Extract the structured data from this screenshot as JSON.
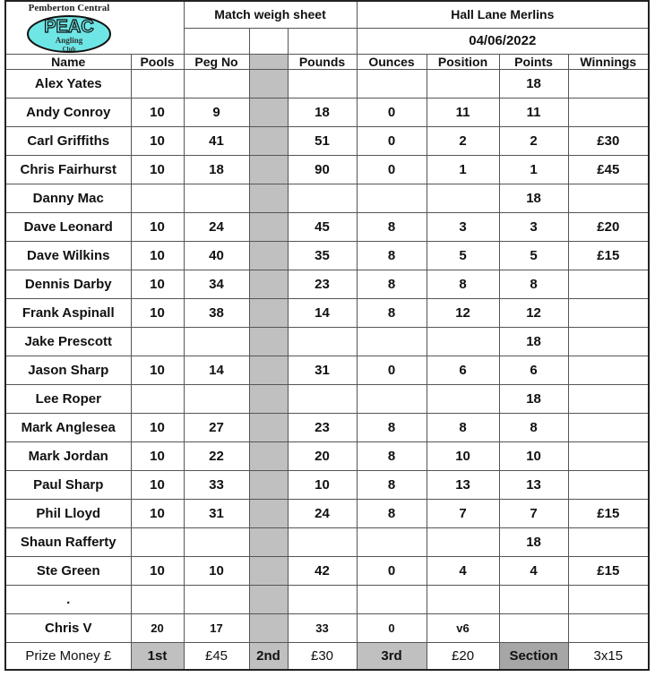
{
  "logo": {
    "text_top": "Pemberton Central",
    "text_main": "PEAC",
    "text_sub1": "Angling",
    "text_sub2": "Club",
    "fill": "#6ee6e6"
  },
  "header": {
    "title": "Match weigh sheet",
    "venue": "Hall Lane Merlins",
    "date": "04/06/2022"
  },
  "columns": [
    "Name",
    "Pools",
    "Peg No",
    "",
    "Pounds",
    "Ounces",
    "Position",
    "Points",
    "Winnings"
  ],
  "rows": [
    {
      "name": "Alex Yates",
      "pools": "",
      "peg": "",
      "pounds": "",
      "ounces": "",
      "position": "",
      "points": "18",
      "winnings": ""
    },
    {
      "name": "Andy Conroy",
      "pools": "10",
      "peg": "9",
      "pounds": "18",
      "ounces": "0",
      "position": "11",
      "points": "11",
      "winnings": ""
    },
    {
      "name": "Carl Griffiths",
      "pools": "10",
      "peg": "41",
      "pounds": "51",
      "ounces": "0",
      "position": "2",
      "points": "2",
      "winnings": "£30"
    },
    {
      "name": "Chris Fairhurst",
      "pools": "10",
      "peg": "18",
      "pounds": "90",
      "ounces": "0",
      "position": "1",
      "points": "1",
      "winnings": "£45"
    },
    {
      "name": "Danny Mac",
      "pools": "",
      "peg": "",
      "pounds": "",
      "ounces": "",
      "position": "",
      "points": "18",
      "winnings": ""
    },
    {
      "name": "Dave Leonard",
      "pools": "10",
      "peg": "24",
      "pounds": "45",
      "ounces": "8",
      "position": "3",
      "points": "3",
      "winnings": "£20"
    },
    {
      "name": "Dave Wilkins",
      "pools": "10",
      "peg": "40",
      "pounds": "35",
      "ounces": "8",
      "position": "5",
      "points": "5",
      "winnings": "£15"
    },
    {
      "name": "Dennis Darby",
      "pools": "10",
      "peg": "34",
      "pounds": "23",
      "ounces": "8",
      "position": "8",
      "points": "8",
      "winnings": ""
    },
    {
      "name": "Frank Aspinall",
      "pools": "10",
      "peg": "38",
      "pounds": "14",
      "ounces": "8",
      "position": "12",
      "points": "12",
      "winnings": ""
    },
    {
      "name": "Jake Prescott",
      "pools": "",
      "peg": "",
      "pounds": "",
      "ounces": "",
      "position": "",
      "points": "18",
      "winnings": ""
    },
    {
      "name": "Jason Sharp",
      "pools": "10",
      "peg": "14",
      "pounds": "31",
      "ounces": "0",
      "position": "6",
      "points": "6",
      "winnings": ""
    },
    {
      "name": "Lee Roper",
      "pools": "",
      "peg": "",
      "pounds": "",
      "ounces": "",
      "position": "",
      "points": "18",
      "winnings": ""
    },
    {
      "name": "Mark Anglesea",
      "pools": "10",
      "peg": "27",
      "pounds": "23",
      "ounces": "8",
      "position": "8",
      "points": "8",
      "winnings": ""
    },
    {
      "name": "Mark Jordan",
      "pools": "10",
      "peg": "22",
      "pounds": "20",
      "ounces": "8",
      "position": "10",
      "points": "10",
      "winnings": ""
    },
    {
      "name": "Paul Sharp",
      "pools": "10",
      "peg": "33",
      "pounds": "10",
      "ounces": "8",
      "position": "13",
      "points": "13",
      "winnings": ""
    },
    {
      "name": "Phil Lloyd",
      "pools": "10",
      "peg": "31",
      "pounds": "24",
      "ounces": "8",
      "position": "7",
      "points": "7",
      "winnings": "£15"
    },
    {
      "name": "Shaun Rafferty",
      "pools": "",
      "peg": "",
      "pounds": "",
      "ounces": "",
      "position": "",
      "points": "18",
      "winnings": ""
    },
    {
      "name": "Ste Green",
      "pools": "10",
      "peg": "10",
      "pounds": "42",
      "ounces": "0",
      "position": "4",
      "points": "4",
      "winnings": "£15"
    },
    {
      "name": ".",
      "pools": "",
      "peg": "",
      "pounds": "",
      "ounces": "",
      "position": "",
      "points": "",
      "winnings": ""
    },
    {
      "name": "Chris V",
      "pools": "20",
      "peg": "17",
      "pounds": "33",
      "ounces": "0",
      "position": "v6",
      "points": "",
      "winnings": ""
    }
  ],
  "prize": {
    "label": "Prize Money £",
    "first_label": "1st",
    "first": "£45",
    "second_label": "2nd",
    "second": "£30",
    "third_label": "3rd",
    "third": "£20",
    "section_label": "Section",
    "section": "3x15"
  }
}
